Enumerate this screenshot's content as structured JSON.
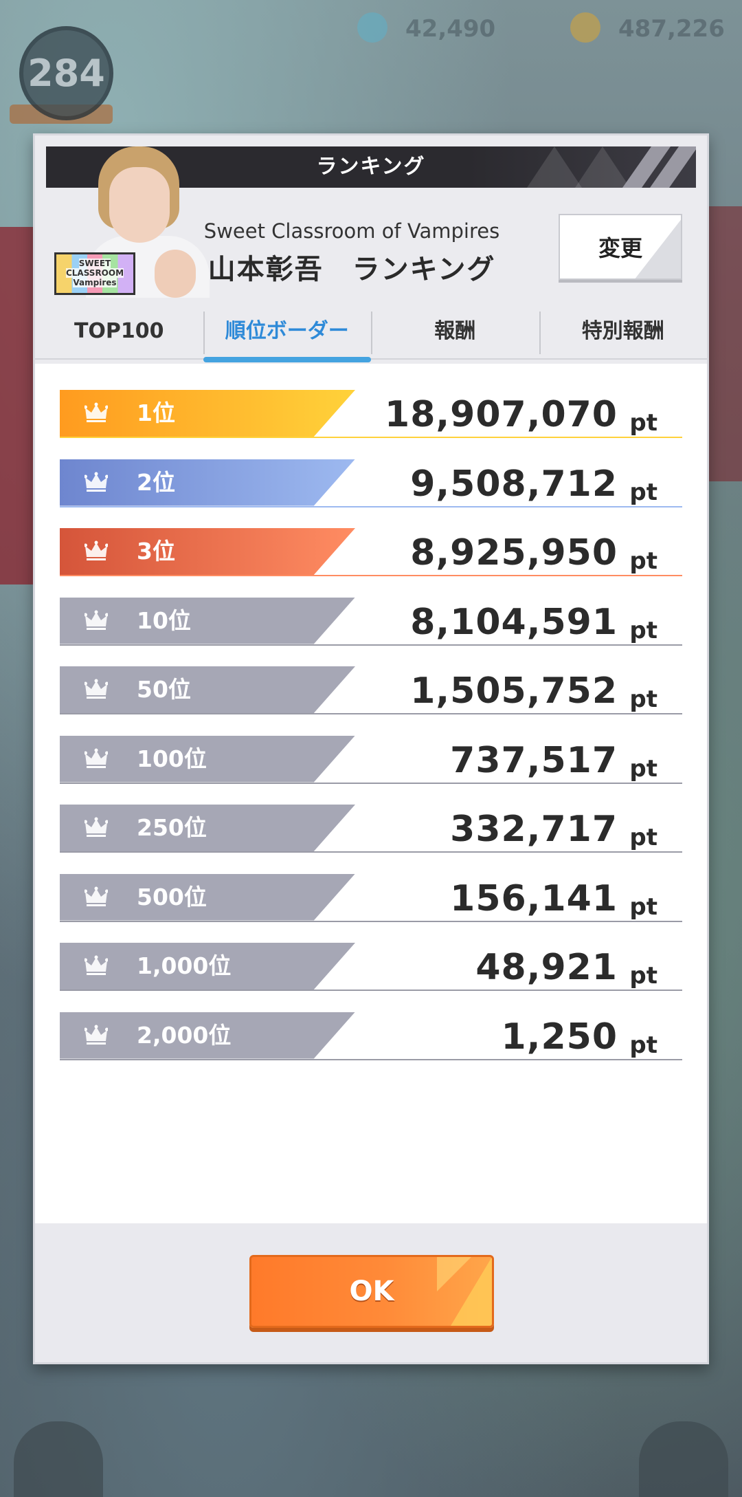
{
  "background": {
    "level": "284",
    "stat_1": "42,490",
    "stat_2": "487,226"
  },
  "dialog": {
    "title": "ランキング",
    "event_subtitle": "Sweet Classroom of Vampires",
    "event_title": "山本彰吾　ランキング",
    "event_logo_text_1": "SWEET",
    "event_logo_text_2": "CLASSROOM",
    "event_logo_text_3": "Vampires",
    "change_button": "変更",
    "tabs": [
      {
        "label": "TOP100",
        "active": false
      },
      {
        "label": "順位ボーダー",
        "active": true
      },
      {
        "label": "報酬",
        "active": false
      },
      {
        "label": "特別報酬",
        "active": false
      }
    ],
    "rows": [
      {
        "rank": "1位",
        "points": "18,907,070",
        "unit": "pt",
        "bar_color": "gold"
      },
      {
        "rank": "2位",
        "points": "9,508,712",
        "unit": "pt",
        "bar_color": "blue"
      },
      {
        "rank": "3位",
        "points": "8,925,950",
        "unit": "pt",
        "bar_color": "orange"
      },
      {
        "rank": "10位",
        "points": "8,104,591",
        "unit": "pt",
        "bar_color": "gray"
      },
      {
        "rank": "50位",
        "points": "1,505,752",
        "unit": "pt",
        "bar_color": "gray"
      },
      {
        "rank": "100位",
        "points": "737,517",
        "unit": "pt",
        "bar_color": "gray"
      },
      {
        "rank": "250位",
        "points": "332,717",
        "unit": "pt",
        "bar_color": "gray"
      },
      {
        "rank": "500位",
        "points": "156,141",
        "unit": "pt",
        "bar_color": "gray"
      },
      {
        "rank": "1,000位",
        "points": "48,921",
        "unit": "pt",
        "bar_color": "gray"
      },
      {
        "rank": "2,000位",
        "points": "1,250",
        "unit": "pt",
        "bar_color": "gray"
      }
    ],
    "ok_button": "OK"
  },
  "colors": {
    "gold": [
      "#ff9b1f",
      "#ffd23a"
    ],
    "blue": [
      "#6e86cf",
      "#9db9f0"
    ],
    "orange": [
      "#d5553a",
      "#ff8c62"
    ],
    "gray": [
      "#a6a7b5",
      "#a6a7b5"
    ],
    "accent": "#2e8ad8"
  },
  "icons": {
    "crown": "crown-icon",
    "home": "home-icon",
    "menu": "menu-grid-icon"
  }
}
